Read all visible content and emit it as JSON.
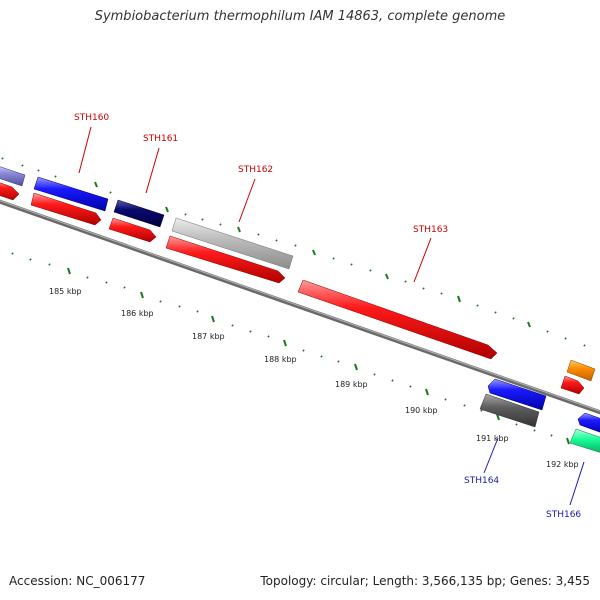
{
  "title": "Symbiobacterium thermophilum IAM 14863, complete genome",
  "footer": {
    "accession": "Accession: NC_006177",
    "summary": "Topology: circular; Length: 3,566,135 bp; Genes: 3,455"
  },
  "colors": {
    "cds_red": "#ff1a1a",
    "cds_blue": "#1a1aff",
    "navy": "#0a0a6e",
    "grey_light": "#bdbdbd",
    "grey_dark": "#5e5e5e",
    "orange": "#ff8c00",
    "spring_green": "#1aff99",
    "tick_green": "#1a7a1a",
    "backbone": "#777777",
    "label_red": "#cc0000",
    "label_blue": "#1a1aa8"
  },
  "scale_labels": [
    "185 kbp",
    "186 kbp",
    "187 kbp",
    "188 kbp",
    "189 kbp",
    "190 kbp",
    "191 kbp",
    "192 kbp"
  ],
  "gene_labels": [
    {
      "id": "sth160",
      "text": "STH160",
      "strand": "forward"
    },
    {
      "id": "sth161",
      "text": "STH161",
      "strand": "forward"
    },
    {
      "id": "sth162",
      "text": "STH162",
      "strand": "forward"
    },
    {
      "id": "sth163",
      "text": "STH163",
      "strand": "forward"
    },
    {
      "id": "sth164",
      "text": "STH164",
      "strand": "reverse"
    },
    {
      "id": "sth166",
      "text": "STH166",
      "strand": "reverse"
    }
  ]
}
